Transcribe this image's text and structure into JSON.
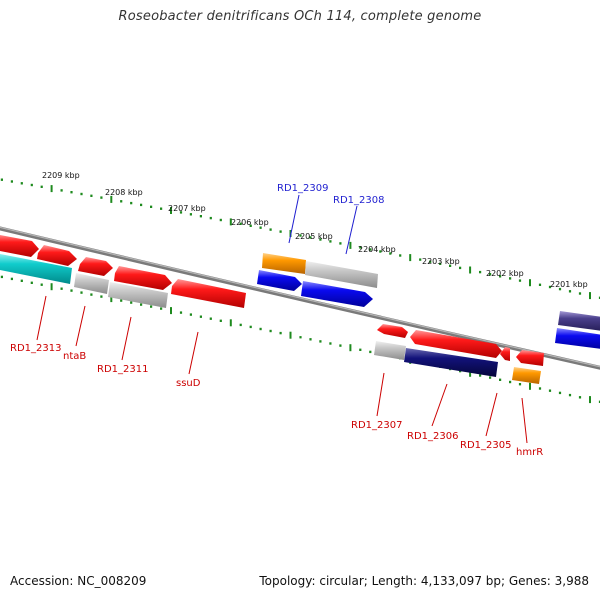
{
  "title": "Roseobacter denitrificans OCh 114, complete genome",
  "footer": {
    "accession": "Accession: NC_008209",
    "stats": "Topology: circular; Length: 4,133,097 bp; Genes: 3,988"
  },
  "colors": {
    "background": "#ffffff",
    "ticks": "#1e8a1e",
    "backbone": "#7a7a7a",
    "label_top": "#1f1fd0",
    "label_bottom": "#cc0000",
    "red_gene": "#ff1a1a",
    "orange_gene": "#ff9900",
    "grey_gene": "#c8c8c8",
    "blue_gene": "#0a0af0",
    "navy_gene": "#12127a",
    "cyan_gene": "#11cccc",
    "purple_gene": "#4a3f8c"
  },
  "scale": {
    "unit": "kbp",
    "ticks": [
      "2209 kbp",
      "2208 kbp",
      "2207 kbp",
      "2206 kbp",
      "2205 kbp",
      "2204 kbp",
      "2203 kbp",
      "2202 kbp",
      "2201 kbp"
    ]
  },
  "gene_labels": {
    "top": [
      "RD1_2309",
      "RD1_2308"
    ],
    "bottom": [
      "RD1_2313",
      "ntaB",
      "RD1_2311",
      "ssuD",
      "RD1_2307",
      "RD1_2306",
      "RD1_2305",
      "hmrR"
    ]
  }
}
